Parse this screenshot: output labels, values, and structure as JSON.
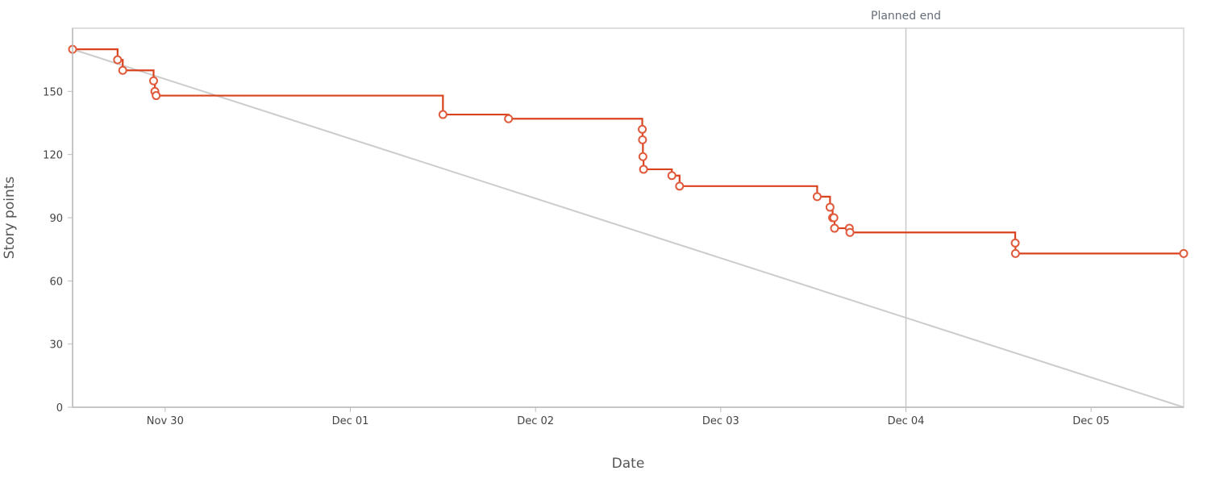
{
  "chart_data": {
    "type": "line",
    "title": "",
    "xlabel": "Date",
    "ylabel": "Story points",
    "x_axis": {
      "start": "2023-11-29 12:00",
      "end": "2023-12-05 12:00",
      "ticks": [
        {
          "date": "2023-11-30 00:00",
          "label": "Nov 30"
        },
        {
          "date": "2023-12-01 00:00",
          "label": "Dec 01"
        },
        {
          "date": "2023-12-02 00:00",
          "label": "Dec 02"
        },
        {
          "date": "2023-12-03 00:00",
          "label": "Dec 03"
        },
        {
          "date": "2023-12-04 00:00",
          "label": "Dec 04"
        },
        {
          "date": "2023-12-05 00:00",
          "label": "Dec 05"
        }
      ]
    },
    "ylim": [
      0,
      180
    ],
    "y_ticks": [
      0,
      30,
      60,
      90,
      120,
      150
    ],
    "grid": false,
    "legend": "none",
    "annotations": [
      {
        "type": "vline",
        "date": "2023-12-04 00:00",
        "label": "Planned end"
      }
    ],
    "series": [
      {
        "kind": "ideal",
        "color": "#cccccc",
        "points": [
          {
            "x": "2023-11-29 12:00",
            "y": 170
          },
          {
            "x": "2023-12-05 12:00",
            "y": 0
          }
        ]
      },
      {
        "kind": "actual",
        "step": true,
        "color": "#d9431f",
        "points": [
          {
            "x": "2023-11-29 12:00",
            "y": 170
          },
          {
            "x": "2023-11-29 17:50",
            "y": 165
          },
          {
            "x": "2023-11-29 18:30",
            "y": 160
          },
          {
            "x": "2023-11-29 22:30",
            "y": 155
          },
          {
            "x": "2023-11-29 22:40",
            "y": 150
          },
          {
            "x": "2023-11-29 22:50",
            "y": 148
          },
          {
            "x": "2023-12-01 12:00",
            "y": 139
          },
          {
            "x": "2023-12-01 20:30",
            "y": 137
          },
          {
            "x": "2023-12-02 13:50",
            "y": 132
          },
          {
            "x": "2023-12-02 13:52",
            "y": 127
          },
          {
            "x": "2023-12-02 13:55",
            "y": 119
          },
          {
            "x": "2023-12-02 14:00",
            "y": 113
          },
          {
            "x": "2023-12-02 17:40",
            "y": 110
          },
          {
            "x": "2023-12-02 18:40",
            "y": 105
          },
          {
            "x": "2023-12-03 12:30",
            "y": 100
          },
          {
            "x": "2023-12-03 14:10",
            "y": 95
          },
          {
            "x": "2023-12-03 14:30",
            "y": 90
          },
          {
            "x": "2023-12-03 14:40",
            "y": 90
          },
          {
            "x": "2023-12-03 14:45",
            "y": 85
          },
          {
            "x": "2023-12-03 16:40",
            "y": 85
          },
          {
            "x": "2023-12-03 16:45",
            "y": 83
          },
          {
            "x": "2023-12-04 14:10",
            "y": 78
          },
          {
            "x": "2023-12-04 14:12",
            "y": 73
          },
          {
            "x": "2023-12-05 12:00",
            "y": 73
          }
        ]
      }
    ]
  }
}
